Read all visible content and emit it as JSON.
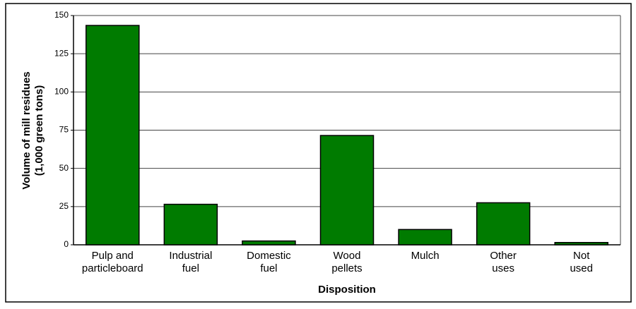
{
  "chart_data": {
    "type": "bar",
    "xlabel": "Disposition",
    "ylabel": [
      "Volume of mill residues",
      "(1,000 green tons)"
    ],
    "categories": [
      [
        "Pulp and",
        "particleboard"
      ],
      [
        "Industrial",
        "fuel"
      ],
      [
        "Domestic",
        "fuel"
      ],
      [
        "Wood",
        "pellets"
      ],
      [
        "Mulch"
      ],
      [
        "Other",
        "uses"
      ],
      [
        "Not",
        "used"
      ]
    ],
    "values": [
      143.5,
      26.5,
      2.5,
      71.5,
      10,
      27.5,
      1.5
    ],
    "color": "#007b00",
    "ylim": [
      0,
      150
    ],
    "yticks": [
      0,
      25,
      50,
      75,
      100,
      125,
      150
    ],
    "grid": true
  }
}
